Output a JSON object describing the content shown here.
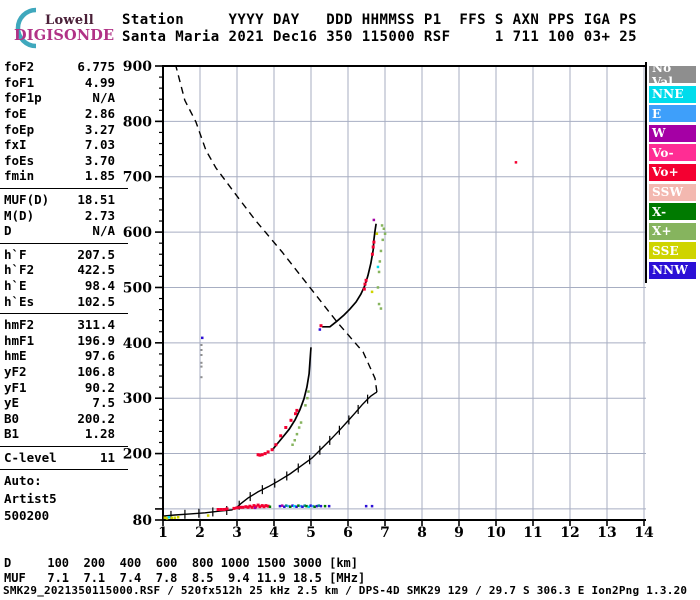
{
  "logo": {
    "brand_top": "Lowell",
    "brand_bottom": "DIGISONDE",
    "arc_color": "#3fa8bd"
  },
  "header": {
    "line1": "Station     YYYY DAY   DDD HHMMSS P1  FFS S AXN PPS IGA PS",
    "line2": "Santa Maria 2021 Dec16 350 115000 RSF     1 711 100 03+ 25"
  },
  "params": {
    "groups": [
      {
        "rows": [
          [
            "foF2",
            "6.775"
          ],
          [
            "foF1",
            "4.99"
          ],
          [
            "foF1p",
            "N/A"
          ],
          [
            "foE",
            "2.86"
          ],
          [
            "foEp",
            "3.27"
          ],
          [
            "fxI",
            "7.03"
          ],
          [
            "foEs",
            "3.70"
          ],
          [
            "fmin",
            "1.85"
          ]
        ]
      },
      {
        "rows": [
          [
            "MUF(D)",
            "18.51"
          ],
          [
            "M(D)",
            "2.73"
          ],
          [
            "D",
            "N/A"
          ]
        ]
      },
      {
        "rows": [
          [
            "h`F",
            "207.5"
          ],
          [
            "h`F2",
            "422.5"
          ],
          [
            "h`E",
            "98.4"
          ],
          [
            "h`Es",
            "102.5"
          ]
        ]
      },
      {
        "rows": [
          [
            "hmF2",
            "311.4"
          ],
          [
            "hmF1",
            "196.9"
          ],
          [
            "hmE",
            "97.6"
          ],
          [
            "yF2",
            "106.8"
          ],
          [
            "yF1",
            "90.2"
          ],
          [
            "yE",
            "7.5"
          ],
          [
            "B0",
            "200.2"
          ],
          [
            "B1",
            "1.28"
          ]
        ]
      },
      {
        "rows": [
          [
            "C-level",
            "11"
          ]
        ]
      }
    ],
    "footer_lines": [
      "Auto:",
      "Artist5",
      "500200"
    ]
  },
  "legend": {
    "items": [
      {
        "label": "No Val",
        "color": "#8e8e8e"
      },
      {
        "label": "NNE",
        "color": "#00dcec"
      },
      {
        "label": "E",
        "color": "#3e9ffa"
      },
      {
        "label": "W",
        "color": "#a500a5"
      },
      {
        "label": "Vo-",
        "color": "#ff2d94"
      },
      {
        "label": "Vo+",
        "color": "#f40031"
      },
      {
        "label": "SSW",
        "color": "#f3b8b0"
      },
      {
        "label": "X-",
        "color": "#007a00"
      },
      {
        "label": "X+",
        "color": "#86b45e"
      },
      {
        "label": "SSE",
        "color": "#cfd400"
      },
      {
        "label": "NNW",
        "color": "#2b0fd6"
      }
    ]
  },
  "footer": {
    "d_line": "D     100  200  400  600  800 1000 1500 3000 [km]",
    "muf_line": "MUF   7.1  7.1  7.4  7.8  8.5  9.4 11.9 18.5 [MHz]",
    "status": "SMK29_2021350115000.RSF / 520fx512h 25 kHz 2.5 km / DPS-4D SMK29 129 / 29.7 S 306.3 E Ion2Png 1.3.20"
  },
  "chart_data": {
    "type": "scatter",
    "title": "Ionogram Santa Maria 2021 Dec16 350 115000",
    "xlim": [
      1,
      14
    ],
    "ylim": [
      80,
      900
    ],
    "x_ticks": [
      1,
      2,
      3,
      4,
      5,
      6,
      7,
      8,
      9,
      10,
      11,
      12,
      13,
      14
    ],
    "y_tick_labels": [
      900,
      800,
      700,
      600,
      500,
      400,
      300,
      200,
      80
    ],
    "y_minor_step": 20,
    "grid": "on",
    "grid_color": "#a7aec2",
    "muf_table": {
      "d_km": [
        100,
        200,
        400,
        600,
        800,
        1000,
        1500,
        3000
      ],
      "muf_mhz": [
        7.1,
        7.1,
        7.4,
        7.8,
        8.5,
        9.4,
        11.9,
        18.5
      ]
    },
    "series": [
      {
        "name": "topside-model-profile",
        "type": "dashed",
        "color": "#000000",
        "points": [
          [
            6.78,
            311
          ],
          [
            6.73,
            336
          ],
          [
            6.41,
            383
          ],
          [
            5.7,
            438
          ],
          [
            5.03,
            495
          ],
          [
            4.22,
            564
          ],
          [
            3.49,
            622
          ],
          [
            3.0,
            665
          ],
          [
            2.43,
            716
          ],
          [
            2.16,
            748
          ],
          [
            1.89,
            799
          ],
          [
            1.59,
            838
          ],
          [
            1.35,
            900
          ]
        ]
      },
      {
        "name": "true-height-profile",
        "type": "line_ticks",
        "color": "#000000",
        "points": [
          [
            1.0,
            87
          ],
          [
            1.32,
            89
          ],
          [
            1.73,
            91
          ],
          [
            2.14,
            93
          ],
          [
            2.54,
            96
          ],
          [
            2.86,
            98
          ],
          [
            3.0,
            103
          ],
          [
            3.11,
            110
          ],
          [
            3.3,
            120
          ],
          [
            3.57,
            131
          ],
          [
            3.84,
            140
          ],
          [
            4.11,
            150
          ],
          [
            4.43,
            163
          ],
          [
            4.76,
            179
          ],
          [
            5.03,
            192
          ],
          [
            5.3,
            210
          ],
          [
            5.51,
            224
          ],
          [
            5.78,
            243
          ],
          [
            6.0,
            259
          ],
          [
            6.19,
            273
          ],
          [
            6.38,
            288
          ],
          [
            6.51,
            297
          ],
          [
            6.62,
            304
          ],
          [
            6.73,
            309
          ],
          [
            6.78,
            311
          ]
        ]
      },
      {
        "name": "f1-trace-line",
        "type": "line",
        "color": "#000000",
        "points": [
          [
            3.95,
            206
          ],
          [
            4.08,
            217
          ],
          [
            4.24,
            230
          ],
          [
            4.41,
            244
          ],
          [
            4.57,
            261
          ],
          [
            4.7,
            279
          ],
          [
            4.81,
            299
          ],
          [
            4.89,
            320
          ],
          [
            4.95,
            344
          ],
          [
            4.97,
            365
          ],
          [
            5.0,
            392
          ]
        ]
      },
      {
        "name": "f2-trace-line",
        "type": "line",
        "color": "#000000",
        "points": [
          [
            5.3,
            429
          ],
          [
            5.51,
            429
          ],
          [
            5.7,
            439
          ],
          [
            5.89,
            450
          ],
          [
            6.05,
            461
          ],
          [
            6.22,
            474
          ],
          [
            6.35,
            488
          ],
          [
            6.46,
            504
          ],
          [
            6.54,
            522
          ],
          [
            6.62,
            544
          ],
          [
            6.68,
            568
          ],
          [
            6.7,
            586
          ],
          [
            6.73,
            602
          ],
          [
            6.76,
            615
          ]
        ]
      },
      {
        "name": "f1-omode-echoes",
        "type": "dots",
        "color": "#f40031",
        "size": 3,
        "points": [
          [
            3.57,
            198
          ],
          [
            3.62,
            197
          ],
          [
            3.68,
            198
          ],
          [
            3.76,
            200
          ],
          [
            3.84,
            203
          ],
          [
            3.95,
            207
          ],
          [
            4.05,
            216
          ],
          [
            4.18,
            232
          ],
          [
            4.32,
            247
          ],
          [
            4.46,
            260
          ],
          [
            4.58,
            272
          ],
          [
            4.62,
            278
          ]
        ]
      },
      {
        "name": "f1-xmode-echoes",
        "type": "dots",
        "color": "#86b45e",
        "size": 2.5,
        "points": [
          [
            4.5,
            216
          ],
          [
            4.56,
            224
          ],
          [
            4.62,
            235
          ],
          [
            4.68,
            247
          ],
          [
            4.73,
            256
          ],
          [
            4.85,
            287
          ],
          [
            4.9,
            300
          ],
          [
            4.93,
            312
          ]
        ]
      },
      {
        "name": "f2-omode-echoes",
        "type": "dots",
        "color": "#f40031",
        "size": 3,
        "points": [
          [
            5.27,
            431
          ],
          [
            6.44,
            497
          ],
          [
            6.46,
            506
          ],
          [
            6.49,
            513
          ],
          [
            6.66,
            560
          ],
          [
            6.68,
            573
          ],
          [
            6.7,
            582
          ]
        ]
      },
      {
        "name": "f2-xmode-echoes",
        "type": "dots",
        "color": "#86b45e",
        "size": 2.5,
        "points": [
          [
            6.92,
            612
          ],
          [
            6.97,
            606
          ],
          [
            7.0,
            597
          ],
          [
            6.94,
            586
          ],
          [
            6.89,
            566
          ],
          [
            6.86,
            547
          ],
          [
            6.84,
            528
          ],
          [
            6.81,
            500
          ],
          [
            6.84,
            470
          ],
          [
            6.89,
            462
          ]
        ]
      },
      {
        "name": "es-trace-echoes",
        "type": "dots",
        "color": "#f40031",
        "size": 3,
        "points": [
          [
            2.49,
            99
          ],
          [
            2.57,
            99
          ],
          [
            2.65,
            99
          ],
          [
            2.73,
            100
          ],
          [
            2.92,
            101
          ],
          [
            3.0,
            102
          ],
          [
            3.08,
            103
          ],
          [
            3.16,
            103
          ],
          [
            3.24,
            104
          ],
          [
            3.3,
            103
          ],
          [
            3.35,
            105
          ],
          [
            3.41,
            103
          ],
          [
            3.46,
            106
          ],
          [
            3.51,
            104
          ],
          [
            3.57,
            107
          ],
          [
            3.62,
            104
          ],
          [
            3.68,
            106
          ],
          [
            3.73,
            104
          ],
          [
            3.78,
            106
          ],
          [
            3.84,
            105
          ]
        ]
      },
      {
        "name": "misc-echoes",
        "type": "cdots",
        "size": 2.5,
        "points": [
          [
            5.24,
            424,
            "#2b0fd6"
          ],
          [
            6.7,
            622,
            "#a500a5"
          ],
          [
            6.78,
            597,
            "#cfd400"
          ],
          [
            6.65,
            492,
            "#cfd400"
          ],
          [
            6.81,
            537,
            "#00dcec"
          ],
          [
            3.49,
            102,
            "#a500a5"
          ],
          [
            3.89,
            104,
            "#007a00"
          ],
          [
            4.16,
            105,
            "#2b0fd6"
          ],
          [
            4.22,
            106,
            "#a500a5"
          ],
          [
            4.28,
            104,
            "#2b0fd6"
          ],
          [
            4.33,
            106,
            "#008b8b"
          ],
          [
            4.39,
            105,
            "#3e9ffa"
          ],
          [
            4.44,
            104,
            "#007a00"
          ],
          [
            4.5,
            106,
            "#2b0fd6"
          ],
          [
            4.55,
            105,
            "#00dcec"
          ],
          [
            4.61,
            104,
            "#2b0fd6"
          ],
          [
            4.66,
            106,
            "#007a00"
          ],
          [
            4.72,
            105,
            "#3e9ffa"
          ],
          [
            4.77,
            104,
            "#2b0fd6"
          ],
          [
            4.83,
            106,
            "#008b8b"
          ],
          [
            4.88,
            105,
            "#007a00"
          ],
          [
            4.94,
            104,
            "#00dcec"
          ],
          [
            4.99,
            106,
            "#2b0fd6"
          ],
          [
            5.05,
            105,
            "#3e9ffa"
          ],
          [
            5.1,
            104,
            "#007a00"
          ],
          [
            5.16,
            105,
            "#2b0fd6"
          ],
          [
            5.21,
            106,
            "#008b8b"
          ],
          [
            5.27,
            105,
            "#2b0fd6"
          ],
          [
            5.38,
            105,
            "#007a00"
          ],
          [
            5.49,
            105,
            "#2b0fd6"
          ],
          [
            6.49,
            105,
            "#2b0fd6"
          ],
          [
            6.65,
            105,
            "#2b0fd6"
          ],
          [
            1.05,
            84,
            "#cfd400"
          ],
          [
            1.11,
            83,
            "#cfd400"
          ],
          [
            1.16,
            85,
            "#00dcec"
          ],
          [
            1.24,
            84,
            "#cfd400"
          ],
          [
            1.32,
            84,
            "#cfd400"
          ],
          [
            1.41,
            85,
            "#cfd400"
          ],
          [
            2.22,
            88,
            "#cfd400"
          ],
          [
            2.06,
            409,
            "#2b0fd6"
          ],
          [
            10.54,
            726,
            "#f40031"
          ]
        ]
      },
      {
        "name": "noval-echoes",
        "type": "dots",
        "color": "#8e8e8e",
        "size": 2,
        "points": [
          [
            2.04,
            396
          ],
          [
            2.04,
            387
          ],
          [
            2.04,
            378
          ],
          [
            2.04,
            364
          ],
          [
            2.04,
            357
          ],
          [
            2.04,
            338
          ]
        ]
      }
    ]
  }
}
